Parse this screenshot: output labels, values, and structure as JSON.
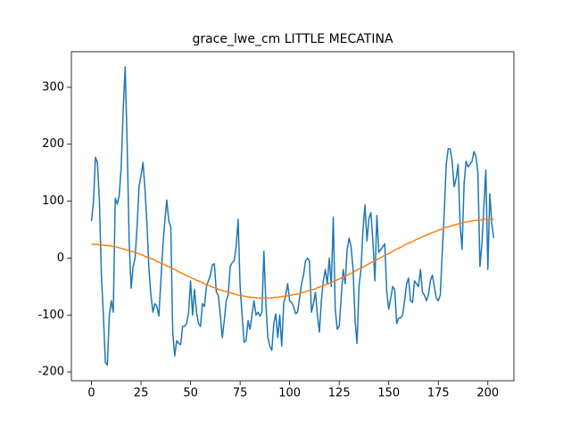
{
  "chart_data": {
    "type": "line",
    "title": "grace_lwe_cm LITTLE MECATINA",
    "x": [
      0,
      1,
      2,
      3,
      4,
      5,
      6,
      7,
      8,
      9,
      10,
      11,
      12,
      13,
      14,
      15,
      16,
      17,
      18,
      19,
      20,
      21,
      22,
      23,
      24,
      25,
      26,
      27,
      28,
      29,
      30,
      31,
      32,
      33,
      34,
      35,
      36,
      37,
      38,
      39,
      40,
      41,
      42,
      43,
      44,
      45,
      46,
      47,
      48,
      49,
      50,
      51,
      52,
      53,
      54,
      55,
      56,
      57,
      58,
      59,
      60,
      61,
      62,
      63,
      64,
      65,
      66,
      67,
      68,
      69,
      70,
      71,
      72,
      73,
      74,
      75,
      76,
      77,
      78,
      79,
      80,
      81,
      82,
      83,
      84,
      85,
      86,
      87,
      88,
      89,
      90,
      91,
      92,
      93,
      94,
      95,
      96,
      97,
      98,
      99,
      100,
      101,
      102,
      103,
      104,
      105,
      106,
      107,
      108,
      109,
      110,
      111,
      112,
      113,
      114,
      115,
      116,
      117,
      118,
      119,
      120,
      121,
      122,
      123,
      124,
      125,
      126,
      127,
      128,
      129,
      130,
      131,
      132,
      133,
      134,
      135,
      136,
      137,
      138,
      139,
      140,
      141,
      142,
      143,
      144,
      145,
      146,
      147,
      148,
      149,
      150,
      151,
      152,
      153,
      154,
      155,
      156,
      157,
      158,
      159,
      160,
      161,
      162,
      163,
      164,
      165,
      166,
      167,
      168,
      169,
      170,
      171,
      172,
      173,
      174,
      175,
      176,
      177,
      178,
      179,
      180,
      181,
      182,
      183,
      184,
      185,
      186,
      187,
      188,
      189,
      190,
      191,
      192,
      193,
      194,
      195,
      196,
      197,
      198,
      199,
      200,
      201,
      202,
      203
    ],
    "series": [
      {
        "color": "#1f77b4",
        "values": [
          65,
          100,
          177,
          168,
          100,
          -30,
          -100,
          -183,
          -188,
          -100,
          -75,
          -95,
          105,
          95,
          110,
          160,
          260,
          336,
          200,
          30,
          -53,
          -15,
          0,
          55,
          125,
          145,
          168,
          120,
          60,
          -20,
          -65,
          -95,
          -80,
          -85,
          -102,
          -40,
          20,
          65,
          102,
          65,
          55,
          -130,
          -172,
          -145,
          -150,
          -152,
          -120,
          -120,
          -115,
          -95,
          -40,
          -100,
          -55,
          -95,
          -115,
          -120,
          -80,
          -85,
          -50,
          -40,
          -30,
          -12,
          -10,
          -60,
          -65,
          -100,
          -140,
          -110,
          -75,
          -65,
          -15,
          -8,
          -5,
          20,
          68,
          -50,
          -100,
          -148,
          -145,
          -110,
          -125,
          -100,
          -75,
          -100,
          -95,
          -102,
          -95,
          12,
          -80,
          -140,
          -155,
          -162,
          -115,
          -98,
          -140,
          -100,
          -155,
          -80,
          -65,
          -45,
          -75,
          -78,
          -85,
          -98,
          -95,
          -70,
          -45,
          -30,
          -5,
          0,
          -5,
          -95,
          -80,
          -60,
          -100,
          -130,
          -75,
          -40,
          -20,
          -45,
          0,
          -50,
          72,
          -90,
          -125,
          -120,
          -70,
          -20,
          -45,
          15,
          35,
          20,
          -20,
          -110,
          -150,
          -50,
          -20,
          50,
          93,
          30,
          70,
          80,
          30,
          -40,
          75,
          10,
          15,
          20,
          25,
          -60,
          -90,
          -70,
          -50,
          -55,
          -115,
          -105,
          -105,
          -100,
          -75,
          -45,
          -35,
          -75,
          -78,
          -40,
          -45,
          -50,
          -20,
          -60,
          -65,
          -75,
          -65,
          -40,
          -30,
          -50,
          -70,
          -75,
          -65,
          10,
          80,
          165,
          192,
          192,
          170,
          125,
          140,
          165,
          60,
          15,
          130,
          170,
          160,
          165,
          170,
          187,
          178,
          150,
          -15,
          25,
          90,
          155,
          -20,
          113,
          60,
          35
        ]
      },
      {
        "color": "#ff7f0e",
        "values": [
          24,
          24,
          24,
          24,
          23,
          23,
          23,
          22,
          22,
          22,
          21,
          20,
          20,
          19,
          18,
          17,
          16,
          15,
          14,
          13,
          12,
          11,
          10,
          9,
          7,
          6,
          5,
          3,
          2,
          1,
          -1,
          -2,
          -4,
          -6,
          -7,
          -9,
          -10,
          -12,
          -14,
          -15,
          -17,
          -19,
          -20,
          -22,
          -24,
          -26,
          -27,
          -29,
          -31,
          -32,
          -34,
          -36,
          -37,
          -39,
          -40,
          -42,
          -43,
          -45,
          -47,
          -48,
          -49,
          -51,
          -52,
          -53,
          -55,
          -56,
          -57,
          -58,
          -59,
          -60,
          -61,
          -62,
          -63,
          -64,
          -65,
          -66,
          -66,
          -67,
          -68,
          -68,
          -69,
          -69,
          -69,
          -70,
          -70,
          -70,
          -70,
          -70,
          -70,
          -70,
          -70,
          -70,
          -69,
          -69,
          -69,
          -68,
          -68,
          -67,
          -67,
          -66,
          -66,
          -65,
          -64,
          -64,
          -63,
          -62,
          -61,
          -60,
          -59,
          -58,
          -57,
          -56,
          -55,
          -54,
          -52,
          -51,
          -50,
          -48,
          -47,
          -46,
          -44,
          -43,
          -41,
          -40,
          -38,
          -37,
          -35,
          -33,
          -32,
          -30,
          -28,
          -27,
          -25,
          -23,
          -21,
          -19,
          -18,
          -16,
          -14,
          -12,
          -10,
          -8,
          -7,
          -5,
          -3,
          -1,
          1,
          3,
          5,
          6,
          8,
          10,
          12,
          14,
          16,
          17,
          19,
          21,
          23,
          25,
          26,
          28,
          29,
          31,
          33,
          34,
          36,
          37,
          39,
          40,
          42,
          43,
          45,
          46,
          47,
          49,
          50,
          51,
          53,
          54,
          55,
          56,
          57,
          58,
          59,
          60,
          61,
          62,
          63,
          63,
          64,
          65,
          65,
          66,
          66,
          67,
          67,
          67,
          68,
          68,
          68,
          68,
          68,
          68
        ]
      }
    ],
    "xlim": [
      -10.15,
      213.15
    ],
    "ylim": [
      -215.5,
      362.5
    ],
    "xticks": [
      0,
      25,
      50,
      75,
      100,
      125,
      150,
      175,
      200
    ],
    "yticks": [
      -200,
      -100,
      0,
      100,
      200,
      300
    ]
  }
}
